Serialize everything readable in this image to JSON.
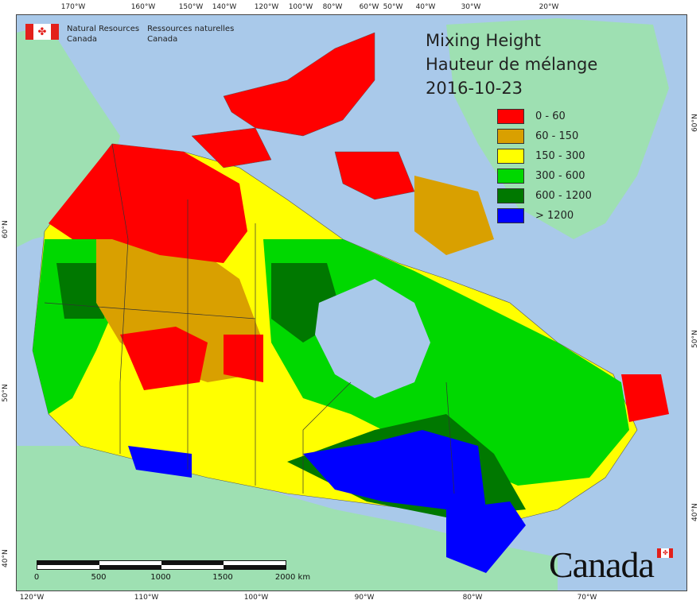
{
  "brand": {
    "en_line1": "Natural Resources",
    "en_line2": "Canada",
    "fr_line1": "Ressources naturelles",
    "fr_line2": "Canada",
    "leaf": "maple-leaf-icon"
  },
  "title": {
    "line1": "Mixing Height",
    "line2": "Hauteur de mélange",
    "date": "2016-10-23"
  },
  "legend": [
    {
      "label": "0 - 60",
      "color": "#ff0000"
    },
    {
      "label": "60 - 150",
      "color": "#d9a000"
    },
    {
      "label": "150 - 300",
      "color": "#ffff00"
    },
    {
      "label": "300 - 600",
      "color": "#00d800"
    },
    {
      "label": "600 - 1200",
      "color": "#007800"
    },
    {
      "label": "> 1200",
      "color": "#0000ff"
    }
  ],
  "axis_top": [
    "170°W",
    "160°W",
    "150°W",
    "140°W",
    "120°W",
    "100°W",
    "80°W",
    "60°W",
    "50°W",
    "40°W",
    "30°W",
    "20°W"
  ],
  "axis_bottom": [
    "120°W",
    "110°W",
    "100°W",
    "90°W",
    "80°W",
    "70°W"
  ],
  "axis_left": [
    "60°N",
    "50°N",
    "40°N"
  ],
  "axis_right": [
    "60°N",
    "50°N",
    "40°N"
  ],
  "scale": {
    "labels": [
      "0",
      "500",
      "1000",
      "1500",
      "2000 km"
    ]
  },
  "wordmark": "Canada",
  "colors": {
    "water": "#a9c9ea",
    "foreign_land": "#9ee0b2"
  }
}
